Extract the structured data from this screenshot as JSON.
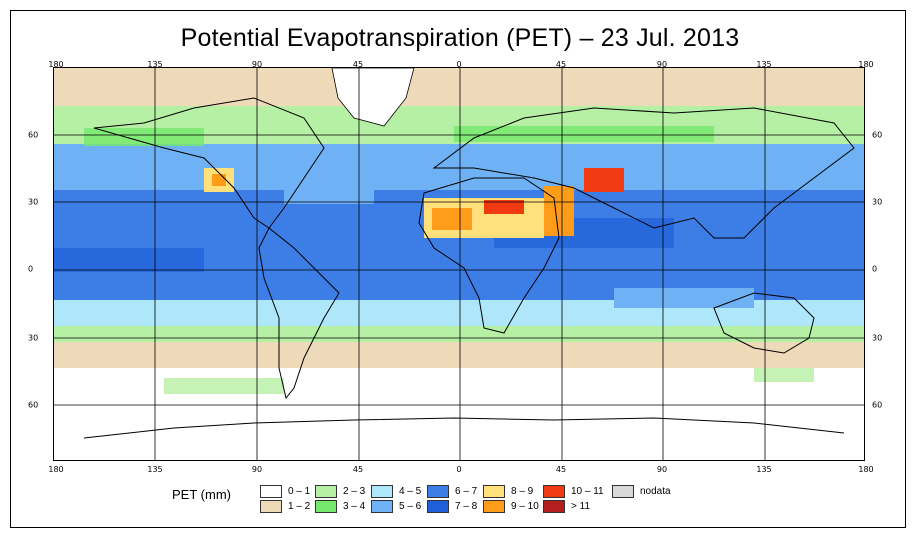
{
  "title": "Potential Evapotranspiration (PET) – 23 Jul. 2013",
  "lon_labels": [
    "180",
    "135",
    "90",
    "45",
    "0",
    "45",
    "90",
    "135",
    "180"
  ],
  "lat_labels": [
    "60",
    "30",
    "0",
    "30",
    "60"
  ],
  "legend": {
    "title": "PET (mm)",
    "items": [
      {
        "label": "0 – 1",
        "color": "#ffffff"
      },
      {
        "label": "1 – 2",
        "color": "#eed9b8"
      },
      {
        "label": "2 – 3",
        "color": "#b6f0a4"
      },
      {
        "label": "3 – 4",
        "color": "#76e86c"
      },
      {
        "label": "4 – 5",
        "color": "#aee6fa"
      },
      {
        "label": "5 – 6",
        "color": "#6fb1f5"
      },
      {
        "label": "6 – 7",
        "color": "#3c7ee6"
      },
      {
        "label": "7 – 8",
        "color": "#1f5fd8"
      },
      {
        "label": "8 – 9",
        "color": "#ffe07a"
      },
      {
        "label": "9 – 10",
        "color": "#ff9c1a"
      },
      {
        "label": "10 – 11",
        "color": "#f23a12"
      },
      {
        "label": "> 11",
        "color": "#b31e1e"
      },
      {
        "label": "nodata",
        "color": "#d9d9d9"
      }
    ]
  }
}
